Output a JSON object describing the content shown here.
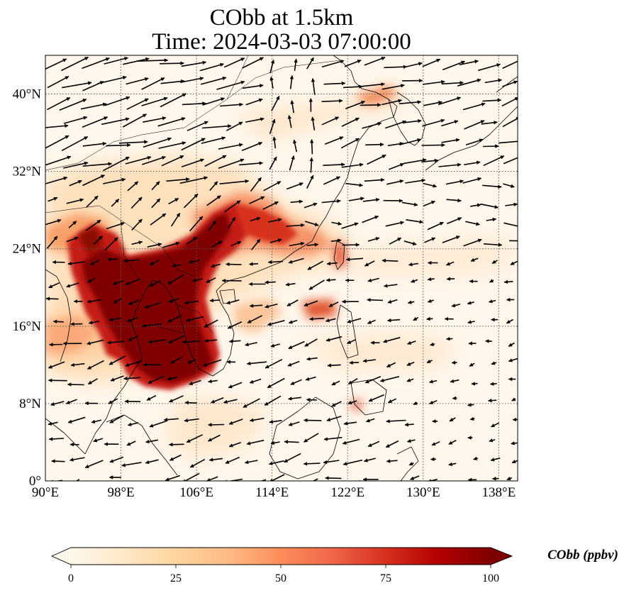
{
  "title": {
    "line1": "CObb at 1.5km",
    "line2": "Time: 2024-03-03 07:00:00"
  },
  "map": {
    "lon_range": [
      90,
      140
    ],
    "lat_range": [
      0,
      44
    ],
    "lon_ticks": [
      90,
      98,
      106,
      114,
      122,
      130,
      138
    ],
    "lon_tick_labels": [
      "90°E",
      "98°E",
      "106°E",
      "114°E",
      "122°E",
      "130°E",
      "138°E"
    ],
    "lat_ticks": [
      0,
      8,
      16,
      24,
      32,
      40
    ],
    "lat_tick_labels": [
      "0°",
      "8°N",
      "16°N",
      "24°N",
      "32°N",
      "40°N"
    ],
    "grid": true,
    "grid_style": "dotted",
    "features": [
      "coastlines",
      "country borders",
      "wind vectors",
      "CObb shading"
    ]
  },
  "colorbar": {
    "orientation": "horizontal",
    "range": [
      0,
      100
    ],
    "ticks": [
      0,
      25,
      50,
      75,
      100
    ],
    "tick_labels": [
      "0",
      "25",
      "50",
      "75",
      "100"
    ],
    "units_label": "CObb (ppbv)",
    "colormap": "OrRd",
    "colors": [
      "#fff7ec",
      "#fee8c8",
      "#fdd49e",
      "#fdbb84",
      "#fc8d59",
      "#ef6548",
      "#d7301f",
      "#b30000",
      "#7f0000"
    ],
    "extend": "both"
  },
  "colors": {
    "background": "#fff7ec",
    "plume_max": "#7f0000",
    "coastline": "#000000",
    "grid": "#555555"
  }
}
